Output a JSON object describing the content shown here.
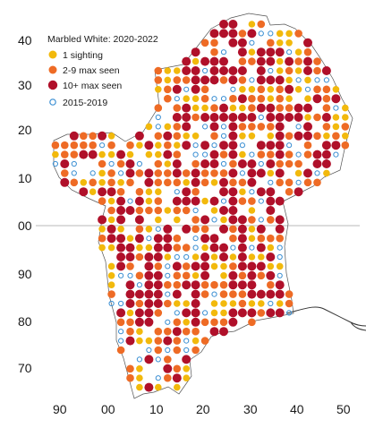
{
  "legend": {
    "title": "Marbled White:  2020-2022",
    "items": [
      {
        "label": "1 sighting",
        "color": "#f2b90c",
        "style": "filled"
      },
      {
        "label": "2-9 max seen",
        "color": "#ee6b25",
        "style": "filled"
      },
      {
        "label": "10+ max seen",
        "color": "#b0102a",
        "style": "filled"
      },
      {
        "label": "2015-2019",
        "color": "#3b8fd3",
        "style": "ring"
      }
    ]
  },
  "axes": {
    "y_ticks": [
      "40",
      "30",
      "20",
      "10",
      "00",
      "90",
      "80",
      "70"
    ],
    "x_ticks": [
      "90",
      "00",
      "10",
      "20",
      "30",
      "40",
      "50"
    ]
  },
  "grid_lines": [
    "horizontal line at 00"
  ],
  "colors": {
    "one": "#f2b90c",
    "two_nine": "#ee6b25",
    "ten_plus": "#b0102a",
    "old_ring": "#3b8fd3",
    "boundary": "#555555",
    "river": "#333333"
  }
}
